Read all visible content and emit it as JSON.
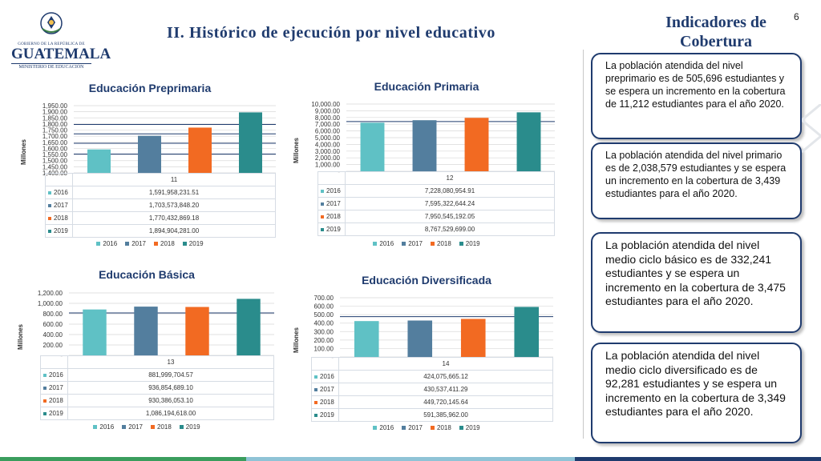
{
  "header": {
    "logo_line1": "GOBIERNO DE LA REPÚBLICA DE",
    "logo_name": "GUATEMALA",
    "logo_ministry": "MINISTERIO DE EDUCACIÓN",
    "title": "II. Histórico de ejecución por nivel educativo",
    "side_title": "Indicadores de Cobertura",
    "page_number": "6"
  },
  "colors": {
    "2016": "#5fc1c5",
    "2017": "#537e9e",
    "2018": "#f26a22",
    "2019": "#2a8c8c",
    "accent": "#1f3b6e"
  },
  "chart_data": [
    {
      "type": "bar",
      "title": "Educación Preprimaria",
      "ylabel": "Millones",
      "category": "11",
      "ylim": [
        1400,
        1950
      ],
      "ticks": [
        "1,950.00",
        "1,900.00",
        "1,850.00",
        "1,800.00",
        "1,750.00",
        "1,700.00",
        "1,650.00",
        "1,600.00",
        "1,550.00",
        "1,500.00",
        "1,450.00",
        "1,400.00"
      ],
      "tick_values": [
        1950,
        1900,
        1850,
        1800,
        1750,
        1700,
        1650,
        1600,
        1550,
        1500,
        1450,
        1400
      ],
      "series": [
        {
          "name": "2016",
          "value": 1591.96,
          "label": "1,591,958,231.51"
        },
        {
          "name": "2017",
          "value": 1703.57,
          "label": "1,703,573,848.20"
        },
        {
          "name": "2018",
          "value": 1770.43,
          "label": "1,770,432,869.18"
        },
        {
          "name": "2019",
          "value": 1894.9,
          "label": "1,894,904,281.00"
        }
      ]
    },
    {
      "type": "bar",
      "title": "Educación Primaria",
      "ylabel": "Millones",
      "category": "12",
      "ylim": [
        0,
        10000
      ],
      "ticks": [
        "10,000.00",
        "9,000.00",
        "8,000.00",
        "7,000.00",
        "6,000.00",
        "5,000.00",
        "4,000.00",
        "3,000.00",
        "2,000.00",
        "1,000.00",
        "-"
      ],
      "tick_values": [
        10000,
        9000,
        8000,
        7000,
        6000,
        5000,
        4000,
        3000,
        2000,
        1000,
        0
      ],
      "series": [
        {
          "name": "2016",
          "value": 7228.08,
          "label": "7,228,080,954.91"
        },
        {
          "name": "2017",
          "value": 7595.32,
          "label": "7,595,322,644.24"
        },
        {
          "name": "2018",
          "value": 7950.55,
          "label": "7,950,545,192.05"
        },
        {
          "name": "2019",
          "value": 8767.53,
          "label": "8,767,529,699.00"
        }
      ]
    },
    {
      "type": "bar",
      "title": "Educación Básica",
      "ylabel": "Millones",
      "category": "13",
      "ylim": [
        0,
        1200
      ],
      "ticks": [
        "1,200.00",
        "1,000.00",
        "800.00",
        "600.00",
        "400.00",
        "200.00",
        "-"
      ],
      "tick_values": [
        1200,
        1000,
        800,
        600,
        400,
        200,
        0
      ],
      "series": [
        {
          "name": "2016",
          "value": 882.0,
          "label": "881,999,704.57"
        },
        {
          "name": "2017",
          "value": 936.85,
          "label": "936,854,689.10"
        },
        {
          "name": "2018",
          "value": 930.39,
          "label": "930,386,053.10"
        },
        {
          "name": "2019",
          "value": 1086.19,
          "label": "1,086,194,618.00"
        }
      ]
    },
    {
      "type": "bar",
      "title": "Educación Diversificada",
      "ylabel": "Millones",
      "category": "14",
      "ylim": [
        0,
        700
      ],
      "ticks": [
        "700.00",
        "600.00",
        "500.00",
        "400.00",
        "300.00",
        "200.00",
        "100.00",
        "-"
      ],
      "tick_values": [
        700,
        600,
        500,
        400,
        300,
        200,
        100,
        0
      ],
      "series": [
        {
          "name": "2016",
          "value": 424.08,
          "label": "424,075,665.12"
        },
        {
          "name": "2017",
          "value": 430.54,
          "label": "430,537,411.29"
        },
        {
          "name": "2018",
          "value": 449.72,
          "label": "449,720,145.64"
        },
        {
          "name": "2019",
          "value": 591.39,
          "label": "591,385,962.00"
        }
      ]
    }
  ],
  "notes": [
    "La población atendida del nivel preprimario es de 505,696 estudiantes y se espera un incremento en la cobertura de 11,212 estudiantes para el año 2020.",
    "La población atendida del nivel primario es de 2,038,579 estudiantes y se espera un incremento en la cobertura de 3,439 estudiantes para el año 2020.",
    "La población atendida del nivel medio ciclo básico es de 332,241 estudiantes y se espera un incremento en la cobertura de 3,475 estudiantes para el año 2020.",
    "La población atendida del nivel medio ciclo diversificado es de 92,281 estudiantes y se espera un incremento en la cobertura de 3,349 estudiantes para el año 2020."
  ]
}
